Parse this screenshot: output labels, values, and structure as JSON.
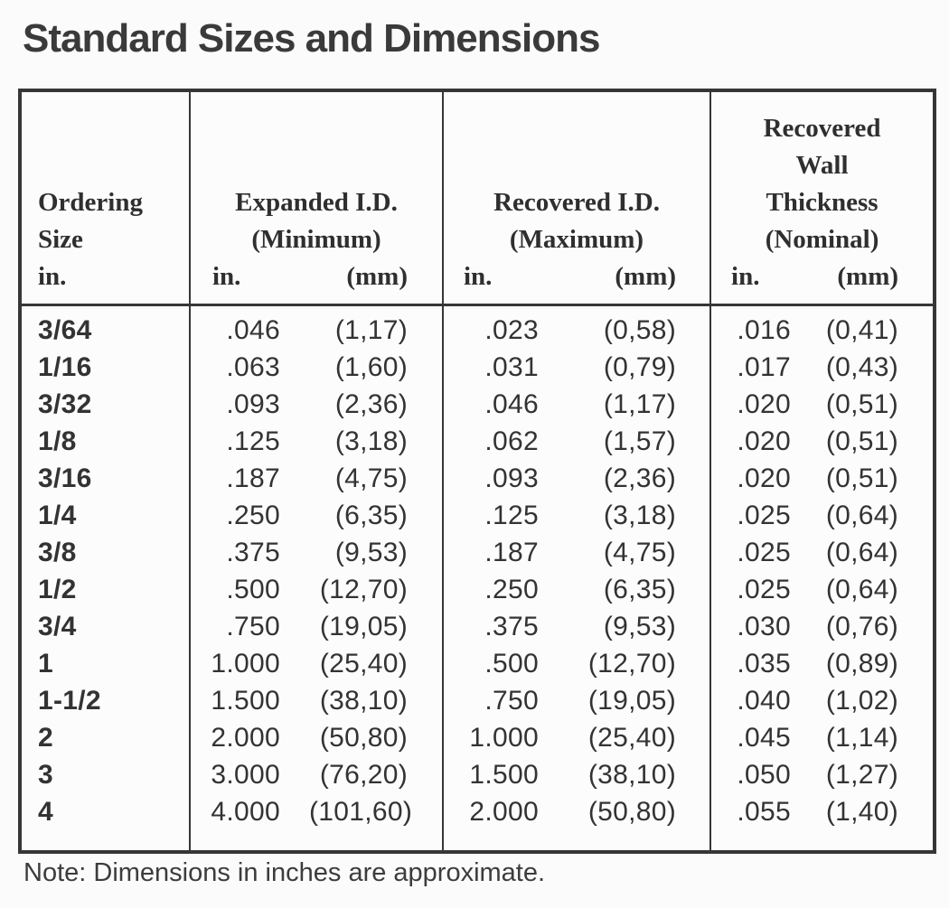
{
  "title": "Standard Sizes and Dimensions",
  "note": "Note: Dimensions in inches are approximate.",
  "colors": {
    "ink": "#333333",
    "border": "#363636",
    "background": "#fbfbfb"
  },
  "table": {
    "columns": [
      {
        "label_lines": "Ordering\nSize\nin."
      },
      {
        "title_lines": "Expanded I.D.\n(Minimum)",
        "unit_in": "in.",
        "unit_mm": "(mm)"
      },
      {
        "title_lines": "Recovered I.D.\n(Maximum)",
        "unit_in": "in.",
        "unit_mm": "(mm)"
      },
      {
        "title_lines": "Recovered\nWall\nThickness\n(Nominal)",
        "unit_in": "in.",
        "unit_mm": "(mm)"
      }
    ],
    "rows": [
      {
        "size": "3/64",
        "exp_in": ".046",
        "exp_mm": "(1,17)",
        "rec_in": ".023",
        "rec_mm": "(0,58)",
        "wall_in": ".016",
        "wall_mm": "(0,41)"
      },
      {
        "size": "1/16",
        "exp_in": ".063",
        "exp_mm": "(1,60)",
        "rec_in": ".031",
        "rec_mm": "(0,79)",
        "wall_in": ".017",
        "wall_mm": "(0,43)"
      },
      {
        "size": "3/32",
        "exp_in": ".093",
        "exp_mm": "(2,36)",
        "rec_in": ".046",
        "rec_mm": "(1,17)",
        "wall_in": ".020",
        "wall_mm": "(0,51)"
      },
      {
        "size": "1/8",
        "exp_in": ".125",
        "exp_mm": "(3,18)",
        "rec_in": ".062",
        "rec_mm": "(1,57)",
        "wall_in": ".020",
        "wall_mm": "(0,51)"
      },
      {
        "size": "3/16",
        "exp_in": ".187",
        "exp_mm": "(4,75)",
        "rec_in": ".093",
        "rec_mm": "(2,36)",
        "wall_in": ".020",
        "wall_mm": "(0,51)"
      },
      {
        "size": "1/4",
        "exp_in": ".250",
        "exp_mm": "(6,35)",
        "rec_in": ".125",
        "rec_mm": "(3,18)",
        "wall_in": ".025",
        "wall_mm": "(0,64)"
      },
      {
        "size": "3/8",
        "exp_in": ".375",
        "exp_mm": "(9,53)",
        "rec_in": ".187",
        "rec_mm": "(4,75)",
        "wall_in": ".025",
        "wall_mm": "(0,64)"
      },
      {
        "size": "1/2",
        "exp_in": ".500",
        "exp_mm": "(12,70)",
        "rec_in": ".250",
        "rec_mm": "(6,35)",
        "wall_in": ".025",
        "wall_mm": "(0,64)"
      },
      {
        "size": "3/4",
        "exp_in": ".750",
        "exp_mm": "(19,05)",
        "rec_in": ".375",
        "rec_mm": "(9,53)",
        "wall_in": ".030",
        "wall_mm": "(0,76)"
      },
      {
        "size": "1",
        "exp_in": "1.000",
        "exp_mm": "(25,40)",
        "rec_in": ".500",
        "rec_mm": "(12,70)",
        "wall_in": ".035",
        "wall_mm": "(0,89)"
      },
      {
        "size": "1-1/2",
        "exp_in": "1.500",
        "exp_mm": "(38,10)",
        "rec_in": ".750",
        "rec_mm": "(19,05)",
        "wall_in": ".040",
        "wall_mm": "(1,02)"
      },
      {
        "size": "2",
        "exp_in": "2.000",
        "exp_mm": "(50,80)",
        "rec_in": "1.000",
        "rec_mm": "(25,40)",
        "wall_in": ".045",
        "wall_mm": "(1,14)"
      },
      {
        "size": "3",
        "exp_in": "3.000",
        "exp_mm": "(76,20)",
        "rec_in": "1.500",
        "rec_mm": "(38,10)",
        "wall_in": ".050",
        "wall_mm": "(1,27)"
      },
      {
        "size": "4",
        "exp_in": "4.000",
        "exp_mm": "(101,60)",
        "rec_in": "2.000",
        "rec_mm": "(50,80)",
        "wall_in": ".055",
        "wall_mm": "(1,40)"
      }
    ]
  }
}
